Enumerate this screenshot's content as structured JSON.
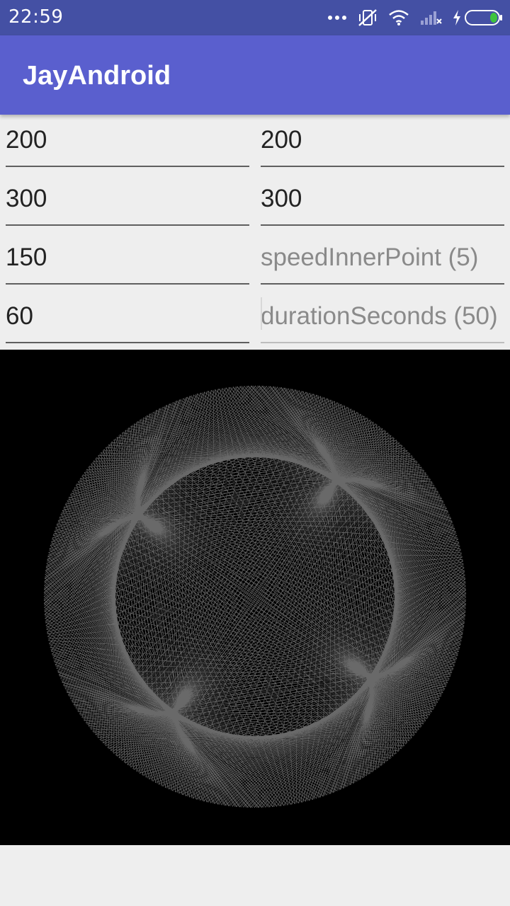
{
  "status_bar": {
    "time": "22:59",
    "icons": [
      "more-icon",
      "vibrate-off-icon",
      "wifi-icon",
      "signal-icon",
      "charging-icon",
      "battery-icon"
    ],
    "color": "#4450a4"
  },
  "app_bar": {
    "title": "JayAndroid",
    "color": "#5a5fce"
  },
  "form": {
    "fields": [
      {
        "value": "200",
        "placeholder": ""
      },
      {
        "value": "200",
        "placeholder": ""
      },
      {
        "value": "300",
        "placeholder": ""
      },
      {
        "value": "300",
        "placeholder": ""
      },
      {
        "value": "150",
        "placeholder": ""
      },
      {
        "value": "",
        "placeholder": "speedInnerPoint (5)"
      },
      {
        "value": "60",
        "placeholder": ""
      },
      {
        "value": "",
        "placeholder": "durationSeconds (50)"
      }
    ]
  },
  "drawing": {
    "background": "#000000",
    "line_color": "#8c8c8c"
  }
}
